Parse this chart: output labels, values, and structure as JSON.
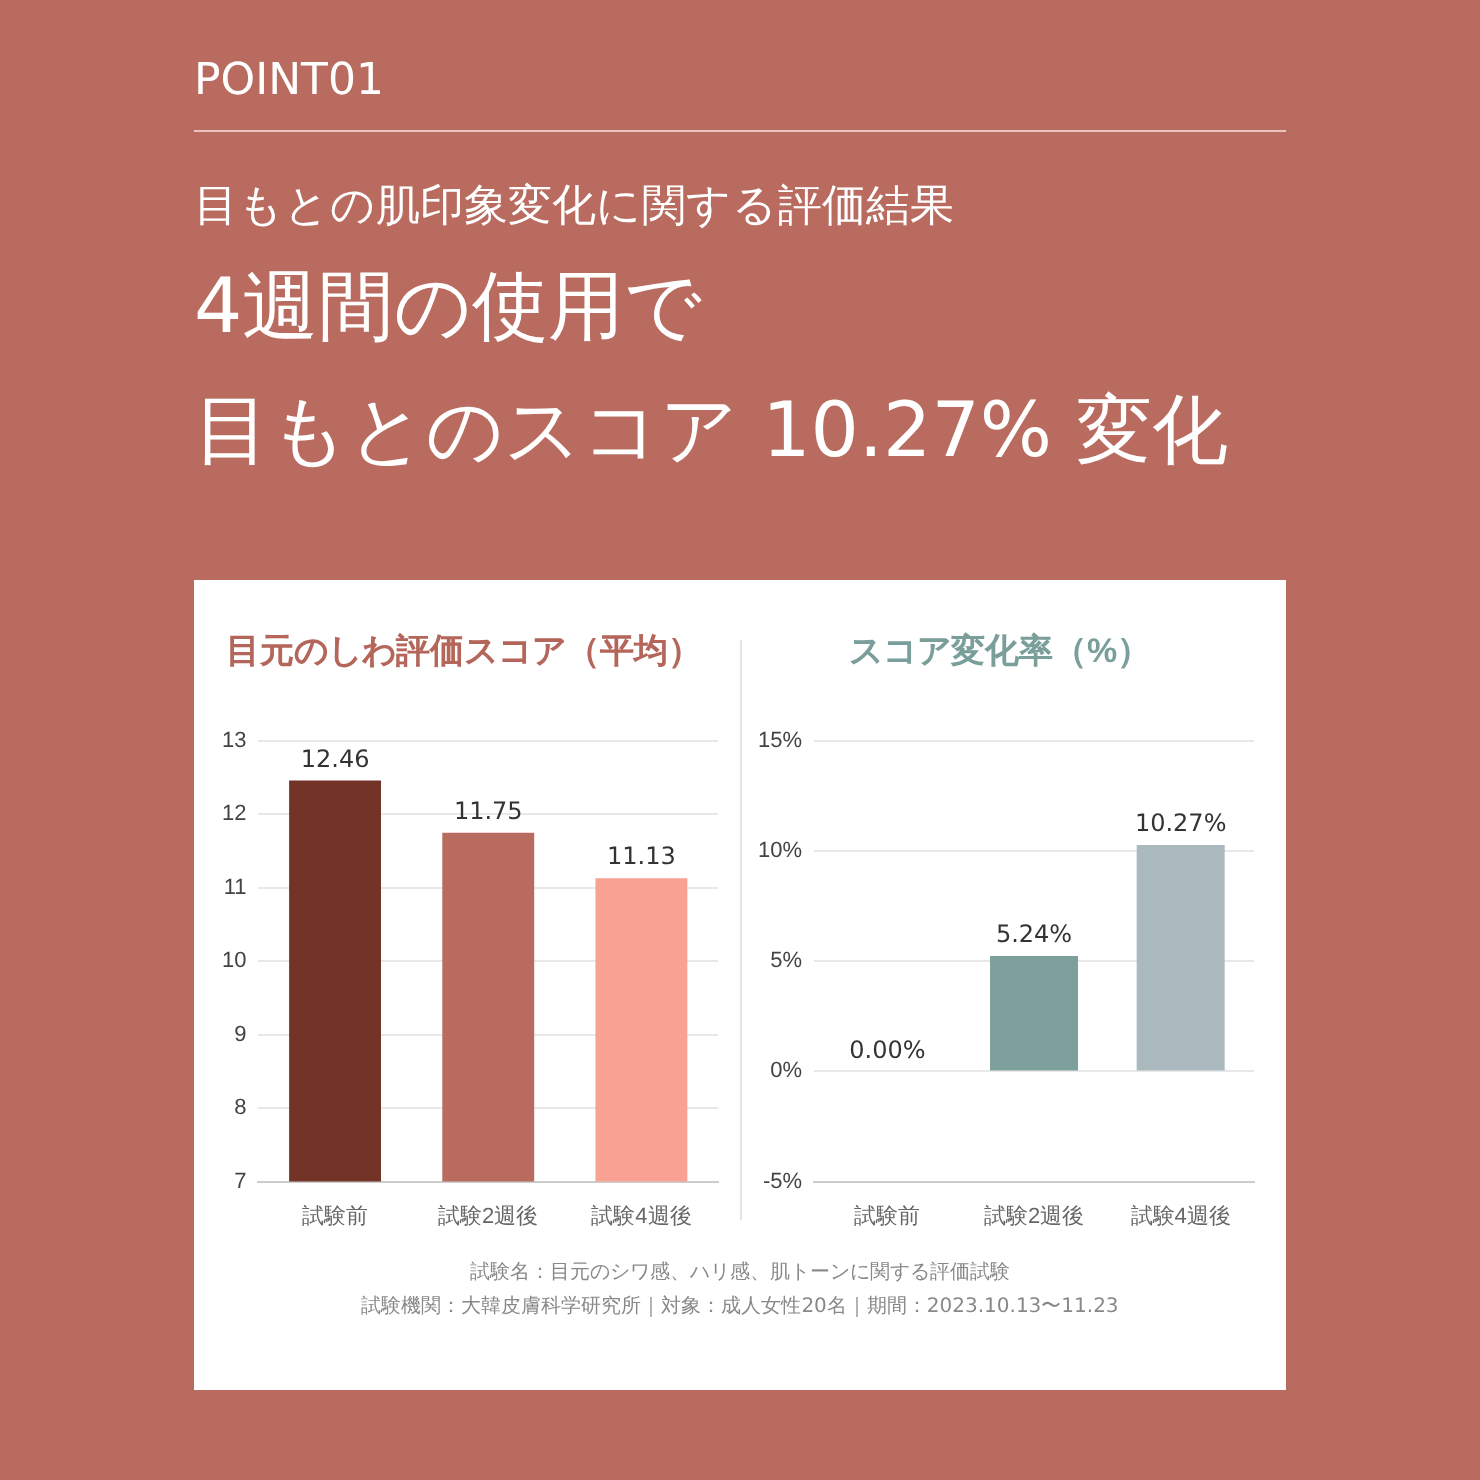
{
  "chart_data": [
    {
      "type": "other",
      "title": "POINT01",
      "subtitle": "目もとの肌印象変化に関する評価結果",
      "annotations": [
        "4週間の使用で",
        "目もとのスコア 10.27% 変化"
      ]
    },
    {
      "type": "bar",
      "title": "目元のしわ評価スコア（平均）",
      "categories": [
        "試験前",
        "試験2週後",
        "試験4週後"
      ],
      "values": [
        12.46,
        11.75,
        11.13
      ],
      "colors": [
        "#733427",
        "#b86b5e",
        "#f9a293"
      ],
      "ylim": [
        7,
        13
      ],
      "yticks": [
        7,
        8,
        9,
        10,
        11,
        12,
        13
      ],
      "grid": "y",
      "data_labels": true
    },
    {
      "type": "bar",
      "title": "スコア変化率（%）",
      "categories": [
        "試験前",
        "試験2週後",
        "試験4週後"
      ],
      "values": [
        0,
        5.24,
        10.27
      ],
      "value_labels": [
        "0.00%",
        "5.24%",
        "10.27%"
      ],
      "colors": [
        "#57877d",
        "#7ea09d",
        "#a9b9bd"
      ],
      "ylim": [
        -5,
        15
      ],
      "yticks": [
        {
          "value": -5,
          "label": "-5%"
        },
        {
          "value": 0,
          "label": "0%"
        },
        {
          "value": 5,
          "label": "5%"
        },
        {
          "value": 10,
          "label": "10%"
        },
        {
          "value": 15,
          "label": "15%"
        }
      ],
      "grid": "y"
    },
    {
      "type": "other",
      "annotations": [
        "試験名：目元のシワ感、ハリ感、肌トーンに関する評価試験",
        "試験機関：大韓皮膚科学研究所｜対象：成人女性20名｜期間：2023.10.13〜11.23"
      ]
    }
  ]
}
